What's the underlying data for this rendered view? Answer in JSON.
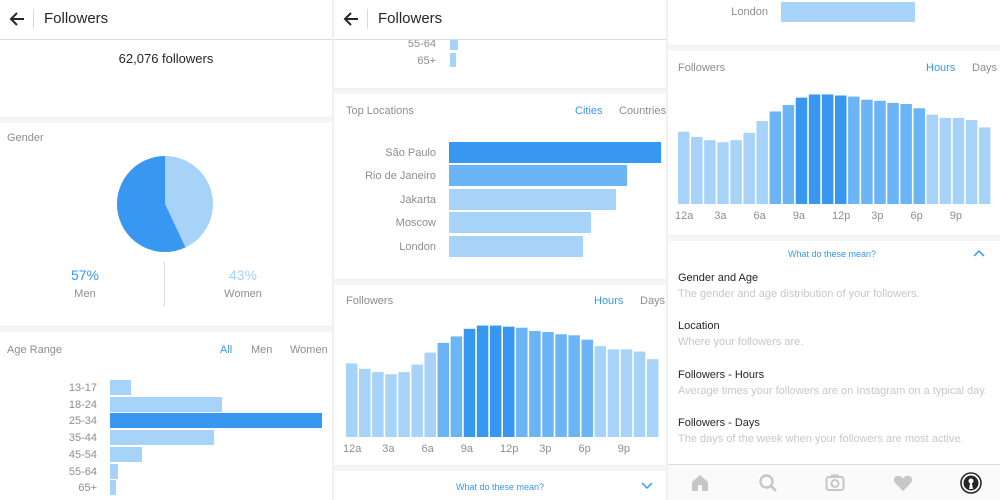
{
  "panel1": {
    "title": "Followers",
    "followers_count": "62,076 followers",
    "gender": {
      "title": "Gender",
      "men_pct": "57%",
      "men_label": "Men",
      "women_pct": "43%",
      "women_label": "Women",
      "men_share": 0.57
    },
    "age_range": {
      "title": "Age Range",
      "tabs": [
        "All",
        "Men",
        "Women"
      ],
      "active_tab": "All",
      "groups": [
        {
          "label": "13-17",
          "value": 0.1
        },
        {
          "label": "18-24",
          "value": 0.53
        },
        {
          "label": "25-34",
          "value": 1.0
        },
        {
          "label": "35-44",
          "value": 0.49
        },
        {
          "label": "45-54",
          "value": 0.15
        },
        {
          "label": "55-64",
          "value": 0.04
        },
        {
          "label": "65+",
          "value": 0.03
        }
      ]
    }
  },
  "panel2": {
    "title": "Followers",
    "age_tail": [
      {
        "label": "55-64",
        "value": 0.04
      },
      {
        "label": "65+",
        "value": 0.03
      }
    ],
    "top_locations": {
      "title": "Top Locations",
      "tabs": [
        "Cities",
        "Countries"
      ],
      "active_tab": "Cities",
      "cities": [
        {
          "label": "São Paulo",
          "value": 1.0
        },
        {
          "label": "Rio de Janeiro",
          "value": 0.84
        },
        {
          "label": "Jakarta",
          "value": 0.79
        },
        {
          "label": "Moscow",
          "value": 0.67
        },
        {
          "label": "London",
          "value": 0.63
        }
      ]
    },
    "followers_chart": {
      "title": "Followers",
      "tabs": [
        "Hours",
        "Days"
      ],
      "active_tab": "Hours"
    },
    "what_mean": "What do these mean?"
  },
  "panel3": {
    "london": {
      "label": "London",
      "value": 0.63
    },
    "followers_chart": {
      "title": "Followers",
      "tabs": [
        "Hours",
        "Days"
      ],
      "active_tab": "Hours"
    },
    "what_mean": "What do these mean?",
    "glossary": [
      {
        "title": "Gender and Age",
        "desc": "The gender and age distribution of your followers."
      },
      {
        "title": "Location",
        "desc": "Where your followers are."
      },
      {
        "title": "Followers - Hours",
        "desc": "Average times your followers are on Instagram on a typical day."
      },
      {
        "title": "Followers - Days",
        "desc": "The days of the week when your followers are most active."
      }
    ],
    "nav": [
      "home-icon",
      "search-icon",
      "camera-icon",
      "heart-icon",
      "profile-icon"
    ]
  },
  "chart_data": {
    "type": "bar",
    "categories": [
      "12a",
      "1a",
      "2a",
      "3a",
      "4a",
      "5a",
      "6a",
      "7a",
      "8a",
      "9a",
      "10a",
      "11a",
      "12p",
      "1p",
      "2p",
      "3p",
      "4p",
      "5p",
      "6p",
      "7p",
      "8p",
      "9p",
      "10p",
      "11p"
    ],
    "x_tick_labels": [
      "12a",
      "3a",
      "6a",
      "9a",
      "12p",
      "3p",
      "6p",
      "9p"
    ],
    "values": [
      0.68,
      0.63,
      0.6,
      0.58,
      0.6,
      0.67,
      0.78,
      0.87,
      0.93,
      1.0,
      1.03,
      1.03,
      1.02,
      1.01,
      0.98,
      0.97,
      0.95,
      0.94,
      0.9,
      0.84,
      0.81,
      0.81,
      0.79,
      0.72
    ],
    "peak_hours": [
      "9a",
      "10a",
      "11a",
      "12p"
    ],
    "ylim": [
      0,
      1.1
    ],
    "colors": {
      "light": "#a8d3f9",
      "mid": "#6bb4f5",
      "strong": "#3897f0"
    }
  }
}
